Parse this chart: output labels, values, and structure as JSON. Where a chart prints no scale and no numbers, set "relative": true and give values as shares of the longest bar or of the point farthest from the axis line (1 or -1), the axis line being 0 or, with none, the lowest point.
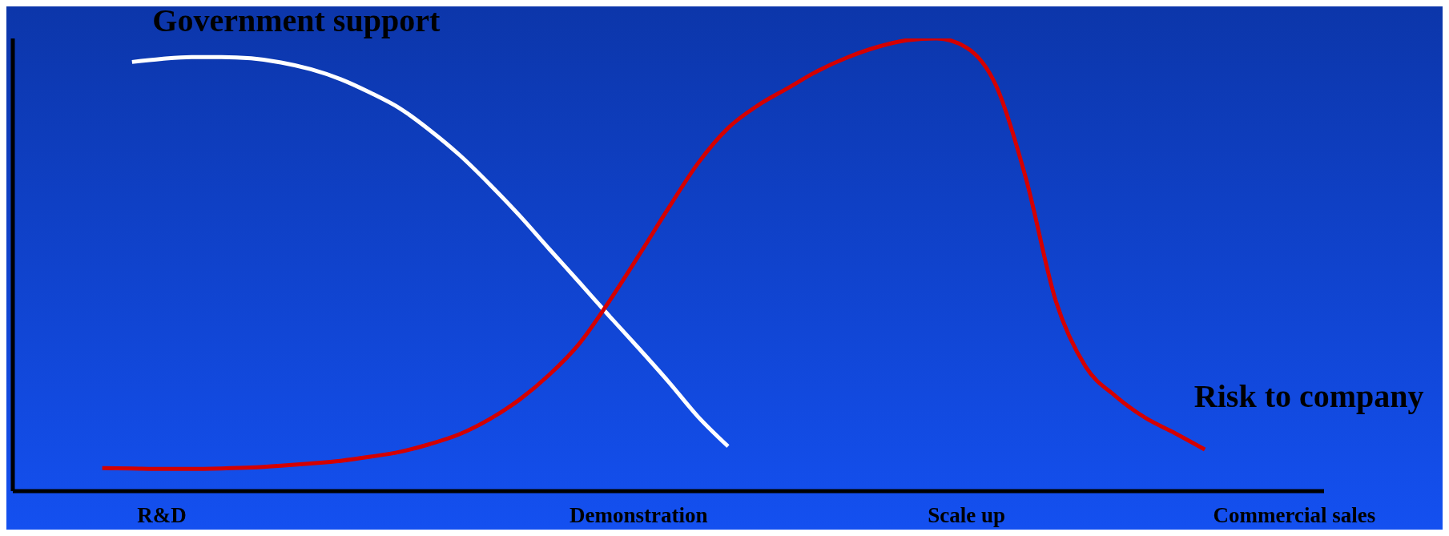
{
  "chart_data": {
    "type": "line",
    "relative": true,
    "categories": [
      null,
      null,
      null,
      null,
      null,
      "R&D",
      null,
      null,
      null,
      null,
      null,
      null,
      null,
      null,
      null,
      null,
      null,
      null,
      null,
      null,
      null,
      "Demonstration",
      null,
      null,
      null,
      null,
      null,
      null,
      null,
      null,
      null,
      null,
      "Scale up",
      null,
      null,
      null,
      null,
      null,
      null,
      null,
      null,
      null,
      null,
      "Commercial sales",
      null
    ],
    "series": [
      {
        "name": "Government support",
        "color": "#ffffff",
        "values": [
          null,
          null,
          null,
          null,
          0.948,
          0.955,
          0.959,
          0.959,
          0.956,
          0.947,
          0.932,
          0.91,
          0.88,
          0.845,
          0.797,
          0.742,
          0.678,
          0.609,
          0.535,
          0.462,
          0.388,
          0.316,
          0.242,
          0.164,
          0.099,
          null,
          null,
          null,
          null,
          null,
          null,
          null,
          null,
          null,
          null,
          null,
          null,
          null,
          null,
          null,
          null,
          null,
          null,
          null,
          null
        ]
      },
      {
        "name": "Risk to company",
        "color": "#d40000",
        "values": [
          null,
          null,
          null,
          0.051,
          0.05,
          0.049,
          0.049,
          0.05,
          0.052,
          0.056,
          0.061,
          0.067,
          0.076,
          0.087,
          0.104,
          0.126,
          0.159,
          0.202,
          0.257,
          0.325,
          0.418,
          0.52,
          0.625,
          0.725,
          0.802,
          0.852,
          0.89,
          0.928,
          0.958,
          0.981,
          0.996,
          1,
          0.98,
          0.895,
          0.69,
          0.42,
          0.275,
          0.21,
          0.162,
          0.128,
          0.092,
          null,
          null,
          null,
          null
        ]
      }
    ],
    "grid": false,
    "legend": false,
    "marker": "none",
    "line_style": "solid"
  }
}
